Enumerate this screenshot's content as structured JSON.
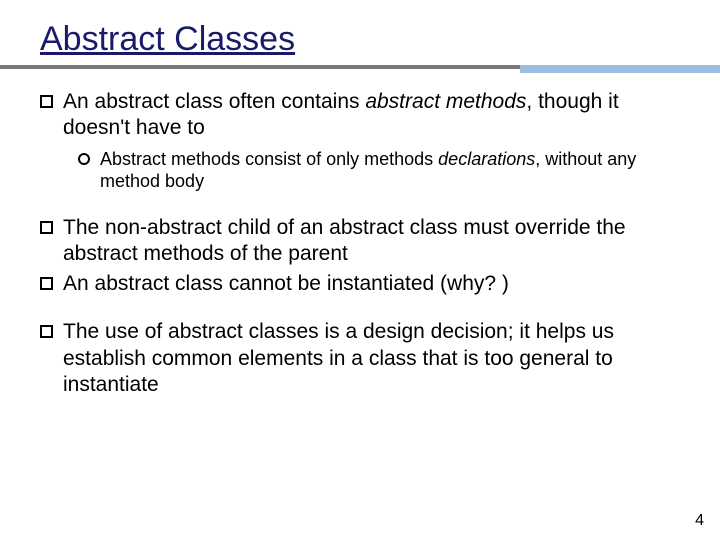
{
  "title": "Abstract Classes",
  "title_color": "#1a1a6a",
  "rule": {
    "gray": "#7a7a7a",
    "blue": "#9bbde0"
  },
  "points": {
    "p1": {
      "prefix": "An abstract class often contains ",
      "em": "abstract methods",
      "suffix": ", though it doesn't have to"
    },
    "p1sub": {
      "prefix": "Abstract methods consist of only methods ",
      "em": "declarations",
      "suffix": ", without any method body"
    },
    "p2": "The non-abstract child of an abstract class must override the abstract methods of the parent",
    "p3": "An abstract class cannot be instantiated (why? )",
    "p4": "The use of abstract classes is a design decision;  it helps us establish common elements in a class that is too general to instantiate"
  },
  "page_number": "4",
  "fonts": {
    "title_size": 34,
    "body_size": 21,
    "sub_size": 18
  }
}
